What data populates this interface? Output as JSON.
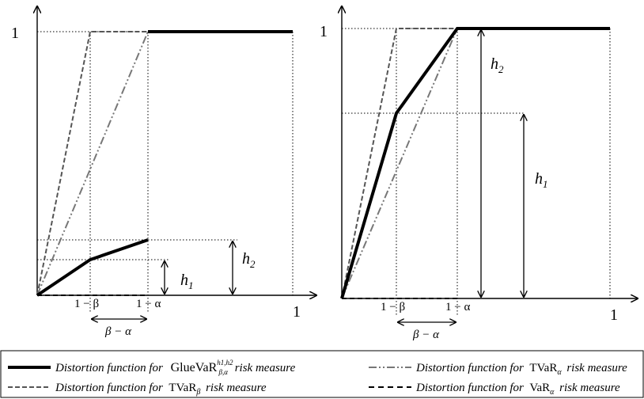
{
  "left_panel": {
    "y_one": "1",
    "x_one": "1",
    "tick_beta": "1 − β",
    "tick_alpha": "1 − α",
    "span_label": "β − α",
    "h1": "h",
    "h1_sub": "1",
    "h2": "h",
    "h2_sub": "2"
  },
  "right_panel": {
    "y_one": "1",
    "x_one": "1",
    "tick_beta": "1 − β",
    "tick_alpha": "1 − α",
    "span_label": "β − α",
    "h1": "h",
    "h1_sub": "1",
    "h2": "h",
    "h2_sub": "2"
  },
  "legend": {
    "glue_prefix": "Distortion function for",
    "glue_name": "GlueVaR",
    "glue_sup": "h1,h2",
    "glue_sub": "β,α",
    "glue_suffix": "risk measure",
    "tvar_alpha_prefix": "Distortion function for",
    "tvar_alpha_name": "TVaR",
    "tvar_alpha_sub": "α",
    "tvar_alpha_suffix": "risk measure",
    "tvar_beta_prefix": "Distortion function for",
    "tvar_beta_name": "TVaR",
    "tvar_beta_sub": "β",
    "tvar_beta_suffix": "risk measure",
    "var_alpha_prefix": "Distortion function for",
    "var_alpha_name": "VaR",
    "var_alpha_sub": "α",
    "var_alpha_suffix": "risk measure"
  },
  "colors": {
    "glue": "#000000",
    "tvar_beta": "#555555",
    "tvar_alpha": "#777777",
    "var_alpha": "#000000"
  }
}
